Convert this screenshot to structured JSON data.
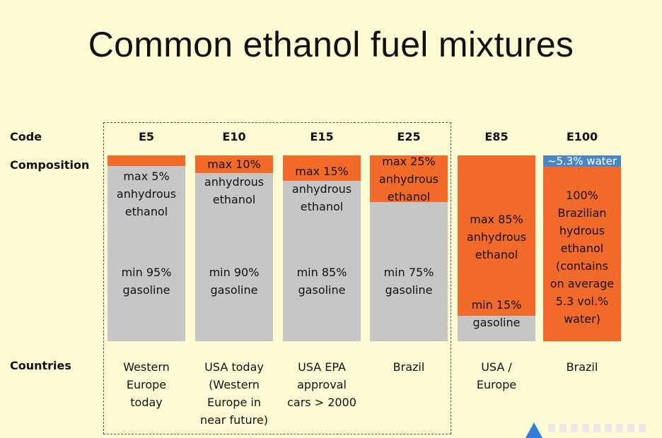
{
  "title": "Common ethanol fuel mixtures",
  "labels": {
    "code": "Code",
    "composition": "Composition",
    "countries": "Countries"
  },
  "colors": {
    "ethanol": "#f26a2a",
    "gasoline": "#c6c6c6",
    "water": "#4a86c5",
    "background": "#fdfbd3"
  },
  "mixtures": [
    {
      "code": "E5",
      "ethanol_pct": 5,
      "ethanol_text": "max 5%\nanhydrous\nethanol",
      "gasoline_text": "min 95%\ngasoline",
      "countries": "Western\nEurope\ntoday"
    },
    {
      "code": "E10",
      "ethanol_pct": 10,
      "ethanol_text": "max 10%\nanhydrous\nethanol",
      "gasoline_text": "min 90%\ngasoline",
      "countries": "USA today\n(Western\nEurope in\nnear future)"
    },
    {
      "code": "E15",
      "ethanol_pct": 15,
      "ethanol_text": "max 15%\nanhydrous\nethanol",
      "gasoline_text": "min 85%\ngasoline",
      "countries": "USA EPA\napproval\ncars > 2000"
    },
    {
      "code": "E25",
      "ethanol_pct": 25,
      "ethanol_text": "max 25%\nanhydrous\nethanol",
      "gasoline_text": "min 75%\ngasoline",
      "countries": "Brazil"
    },
    {
      "code": "E85",
      "ethanol_pct": 85,
      "ethanol_text": "max 85%\nanhydrous\nethanol",
      "gasoline_text": "min 15%\ngasoline",
      "countries": "USA /\nEurope"
    },
    {
      "code": "E100",
      "ethanol_pct": 100,
      "water_pct": 5.3,
      "water_text": "~5.3% water",
      "ethanol_text": "100%\nBrazilian\nhydrous\nethanol\n(contains\non average\n5.3 vol.%\nwater)",
      "gasoline_text": "",
      "countries": "Brazil"
    }
  ]
}
